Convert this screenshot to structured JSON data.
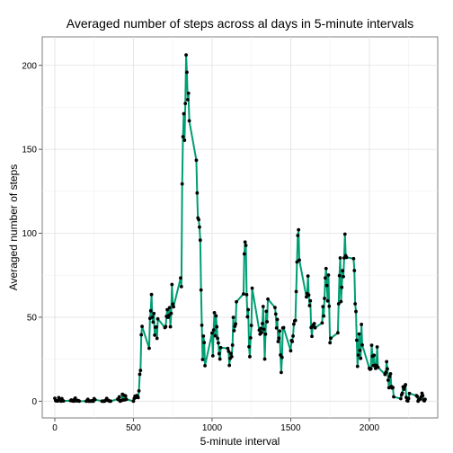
{
  "chart_data": {
    "type": "line",
    "title": "Averaged number of steps across al days in 5-minute intervals",
    "xlabel": "5-minute interval",
    "ylabel": "Averaged number of steps",
    "xlim": [
      -80,
      2435
    ],
    "ylim": [
      -10,
      217
    ],
    "xticks": [
      0,
      500,
      1000,
      1500,
      2000
    ],
    "yticks": [
      0,
      50,
      100,
      150,
      200
    ],
    "grid": true,
    "line_color": "#009E73",
    "point_color": "#000000",
    "points": [
      [
        0,
        1.7
      ],
      [
        5,
        0.3
      ],
      [
        10,
        0.1
      ],
      [
        15,
        0.2
      ],
      [
        20,
        0.1
      ],
      [
        25,
        2.1
      ],
      [
        30,
        0.5
      ],
      [
        35,
        0.9
      ],
      [
        40,
        0.0
      ],
      [
        45,
        1.5
      ],
      [
        50,
        0.3
      ],
      [
        55,
        0.1
      ],
      [
        100,
        0.3
      ],
      [
        105,
        0.7
      ],
      [
        110,
        0.2
      ],
      [
        115,
        0.3
      ],
      [
        120,
        0.0
      ],
      [
        125,
        1.1
      ],
      [
        130,
        1.8
      ],
      [
        135,
        0.2
      ],
      [
        140,
        0.2
      ],
      [
        145,
        0.4
      ],
      [
        150,
        0.3
      ],
      [
        155,
        0.0
      ],
      [
        200,
        0.0
      ],
      [
        210,
        1.1
      ],
      [
        215,
        0.0
      ],
      [
        220,
        0.0
      ],
      [
        225,
        0.1
      ],
      [
        230,
        0.0
      ],
      [
        235,
        0.2
      ],
      [
        240,
        0.0
      ],
      [
        245,
        0.0
      ],
      [
        250,
        1.5
      ],
      [
        255,
        0.9
      ],
      [
        300,
        0.0
      ],
      [
        305,
        0.0
      ],
      [
        310,
        0.0
      ],
      [
        315,
        0.0
      ],
      [
        320,
        0.2
      ],
      [
        325,
        0.6
      ],
      [
        330,
        1.6
      ],
      [
        335,
        0.6
      ],
      [
        340,
        0.5
      ],
      [
        345,
        0.1
      ],
      [
        350,
        0.0
      ],
      [
        355,
        0.0
      ],
      [
        400,
        1.2
      ],
      [
        405,
        0.9
      ],
      [
        410,
        2.6
      ],
      [
        415,
        0.0
      ],
      [
        420,
        0.3
      ],
      [
        425,
        0.4
      ],
      [
        430,
        4.1
      ],
      [
        435,
        0.7
      ],
      [
        440,
        3.5
      ],
      [
        445,
        0.8
      ],
      [
        450,
        3.1
      ],
      [
        455,
        1.1
      ],
      [
        500,
        0.0
      ],
      [
        505,
        1.6
      ],
      [
        510,
        3.0
      ],
      [
        515,
        2.2
      ],
      [
        520,
        3.3
      ],
      [
        525,
        3.0
      ],
      [
        530,
        2.1
      ],
      [
        535,
        6.1
      ],
      [
        540,
        16.0
      ],
      [
        545,
        18.3
      ],
      [
        550,
        39.5
      ],
      [
        555,
        44.5
      ],
      [
        600,
        31.5
      ],
      [
        605,
        49.3
      ],
      [
        610,
        53.8
      ],
      [
        615,
        63.5
      ],
      [
        620,
        50.0
      ],
      [
        625,
        47.1
      ],
      [
        630,
        52.2
      ],
      [
        635,
        39.3
      ],
      [
        640,
        44.0
      ],
      [
        645,
        44.2
      ],
      [
        650,
        37.4
      ],
      [
        655,
        49.0
      ],
      [
        700,
        43.8
      ],
      [
        705,
        44.4
      ],
      [
        710,
        50.5
      ],
      [
        715,
        54.5
      ],
      [
        720,
        49.9
      ],
      [
        725,
        51.0
      ],
      [
        730,
        55.7
      ],
      [
        735,
        44.3
      ],
      [
        740,
        52.3
      ],
      [
        745,
        69.5
      ],
      [
        750,
        57.8
      ],
      [
        755,
        56.2
      ],
      [
        800,
        73.4
      ],
      [
        805,
        68.2
      ],
      [
        810,
        129.4
      ],
      [
        815,
        157.5
      ],
      [
        820,
        171.2
      ],
      [
        825,
        155.4
      ],
      [
        830,
        177.3
      ],
      [
        835,
        206.2
      ],
      [
        840,
        195.9
      ],
      [
        845,
        179.6
      ],
      [
        850,
        183.4
      ],
      [
        855,
        167.0
      ],
      [
        900,
        143.5
      ],
      [
        905,
        124.0
      ],
      [
        910,
        109.1
      ],
      [
        915,
        108.1
      ],
      [
        920,
        103.7
      ],
      [
        925,
        95.9
      ],
      [
        930,
        66.2
      ],
      [
        935,
        45.2
      ],
      [
        940,
        24.8
      ],
      [
        945,
        38.8
      ],
      [
        950,
        34.9
      ],
      [
        955,
        21.1
      ],
      [
        1000,
        40.6
      ],
      [
        1005,
        27.0
      ],
      [
        1010,
        42.4
      ],
      [
        1015,
        52.7
      ],
      [
        1020,
        38.9
      ],
      [
        1025,
        50.8
      ],
      [
        1030,
        44.3
      ],
      [
        1035,
        37.4
      ],
      [
        1040,
        34.7
      ],
      [
        1045,
        28.3
      ],
      [
        1050,
        25.1
      ],
      [
        1055,
        31.9
      ],
      [
        1100,
        31.4
      ],
      [
        1105,
        29.7
      ],
      [
        1110,
        21.3
      ],
      [
        1115,
        25.5
      ],
      [
        1120,
        28.4
      ],
      [
        1125,
        26.5
      ],
      [
        1130,
        33.4
      ],
      [
        1135,
        49.9
      ],
      [
        1140,
        42.0
      ],
      [
        1145,
        44.6
      ],
      [
        1150,
        46.0
      ],
      [
        1155,
        59.2
      ],
      [
        1200,
        63.9
      ],
      [
        1205,
        87.7
      ],
      [
        1210,
        94.8
      ],
      [
        1215,
        92.8
      ],
      [
        1220,
        63.4
      ],
      [
        1225,
        50.2
      ],
      [
        1230,
        54.5
      ],
      [
        1235,
        32.4
      ],
      [
        1240,
        26.5
      ],
      [
        1245,
        37.7
      ],
      [
        1250,
        45.1
      ],
      [
        1255,
        67.3
      ],
      [
        1300,
        42.3
      ],
      [
        1305,
        39.9
      ],
      [
        1310,
        43.3
      ],
      [
        1315,
        40.9
      ],
      [
        1320,
        46.2
      ],
      [
        1325,
        56.4
      ],
      [
        1330,
        42.8
      ],
      [
        1335,
        25.1
      ],
      [
        1340,
        39.9
      ],
      [
        1345,
        53.5
      ],
      [
        1350,
        47.3
      ],
      [
        1355,
        60.8
      ],
      [
        1400,
        55.8
      ],
      [
        1405,
        51.9
      ],
      [
        1410,
        43.6
      ],
      [
        1415,
        48.7
      ],
      [
        1420,
        35.5
      ],
      [
        1425,
        37.5
      ],
      [
        1430,
        41.8
      ],
      [
        1435,
        27.5
      ],
      [
        1440,
        17.1
      ],
      [
        1445,
        26.1
      ],
      [
        1450,
        43.6
      ],
      [
        1455,
        43.8
      ],
      [
        1500,
        30.0
      ],
      [
        1505,
        36.1
      ],
      [
        1510,
        35.5
      ],
      [
        1515,
        38.8
      ],
      [
        1520,
        45.9
      ],
      [
        1525,
        47.8
      ],
      [
        1530,
        48.1
      ],
      [
        1535,
        65.3
      ],
      [
        1540,
        82.9
      ],
      [
        1545,
        98.7
      ],
      [
        1550,
        102.1
      ],
      [
        1555,
        84.0
      ],
      [
        1600,
        62.1
      ],
      [
        1605,
        64.1
      ],
      [
        1610,
        74.5
      ],
      [
        1615,
        63.2
      ],
      [
        1620,
        56.9
      ],
      [
        1625,
        59.8
      ],
      [
        1630,
        43.9
      ],
      [
        1635,
        38.6
      ],
      [
        1640,
        44.7
      ],
      [
        1645,
        45.5
      ],
      [
        1650,
        46.2
      ],
      [
        1655,
        43.7
      ],
      [
        1700,
        46.6
      ],
      [
        1705,
        56.3
      ],
      [
        1710,
        50.7
      ],
      [
        1715,
        61.2
      ],
      [
        1720,
        73.4
      ],
      [
        1725,
        79.0
      ],
      [
        1730,
        68.9
      ],
      [
        1735,
        59.7
      ],
      [
        1740,
        75.1
      ],
      [
        1745,
        56.5
      ],
      [
        1750,
        34.8
      ],
      [
        1755,
        37.5
      ],
      [
        1800,
        40.7
      ],
      [
        1805,
        58.0
      ],
      [
        1810,
        74.7
      ],
      [
        1815,
        85.3
      ],
      [
        1820,
        59.3
      ],
      [
        1825,
        67.8
      ],
      [
        1830,
        77.7
      ],
      [
        1835,
        74.2
      ],
      [
        1840,
        85.3
      ],
      [
        1845,
        99.5
      ],
      [
        1850,
        86.6
      ],
      [
        1855,
        85.6
      ],
      [
        1900,
        84.9
      ],
      [
        1905,
        77.8
      ],
      [
        1910,
        58.0
      ],
      [
        1915,
        53.4
      ],
      [
        1920,
        36.3
      ],
      [
        1925,
        20.7
      ],
      [
        1930,
        27.4
      ],
      [
        1935,
        40.0
      ],
      [
        1940,
        30.2
      ],
      [
        1945,
        25.5
      ],
      [
        1950,
        45.7
      ],
      [
        1955,
        33.5
      ],
      [
        2000,
        19.6
      ],
      [
        2005,
        19.0
      ],
      [
        2010,
        19.3
      ],
      [
        2015,
        33.3
      ],
      [
        2020,
        26.8
      ],
      [
        2025,
        21.2
      ],
      [
        2030,
        27.3
      ],
      [
        2035,
        21.3
      ],
      [
        2040,
        19.5
      ],
      [
        2045,
        21.3
      ],
      [
        2050,
        32.3
      ],
      [
        2055,
        20.2
      ],
      [
        2100,
        15.9
      ],
      [
        2105,
        17.2
      ],
      [
        2110,
        23.5
      ],
      [
        2115,
        19.2
      ],
      [
        2120,
        12.5
      ],
      [
        2125,
        8.0
      ],
      [
        2130,
        14.7
      ],
      [
        2135,
        16.3
      ],
      [
        2140,
        8.7
      ],
      [
        2145,
        7.8
      ],
      [
        2150,
        8.1
      ],
      [
        2155,
        2.6
      ],
      [
        2200,
        1.5
      ],
      [
        2205,
        3.7
      ],
      [
        2210,
        4.8
      ],
      [
        2215,
        8.5
      ],
      [
        2220,
        7.1
      ],
      [
        2225,
        8.7
      ],
      [
        2230,
        9.8
      ],
      [
        2235,
        2.2
      ],
      [
        2240,
        0.3
      ],
      [
        2245,
        0.1
      ],
      [
        2250,
        1.6
      ],
      [
        2255,
        4.6
      ],
      [
        2300,
        3.3
      ],
      [
        2305,
        2.8
      ],
      [
        2310,
        0.0
      ],
      [
        2315,
        0.8
      ],
      [
        2320,
        1.0
      ],
      [
        2325,
        1.6
      ],
      [
        2330,
        2.6
      ],
      [
        2335,
        4.7
      ],
      [
        2340,
        3.3
      ],
      [
        2345,
        0.6
      ],
      [
        2350,
        0.2
      ],
      [
        2355,
        1.1
      ]
    ]
  }
}
